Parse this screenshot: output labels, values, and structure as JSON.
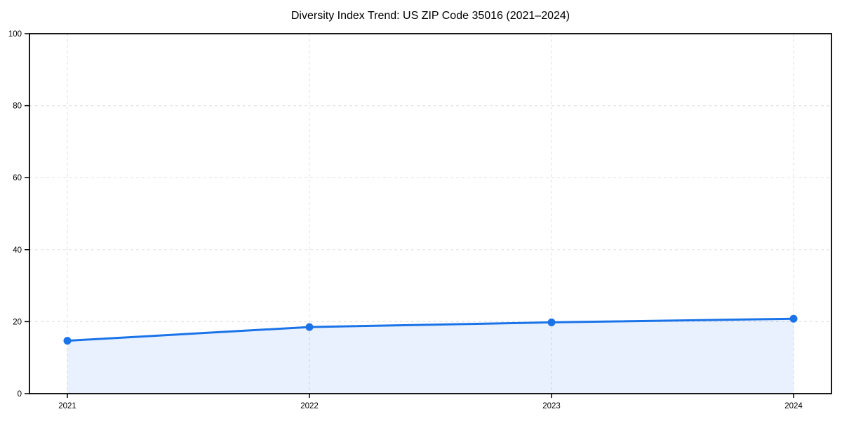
{
  "figure": {
    "title": "Diversity Index Trend: US ZIP Code 35016 (2021–2024)"
  },
  "chart_data": {
    "type": "area",
    "categories": [
      "2021",
      "2022",
      "2023",
      "2024"
    ],
    "values": [
      14.7,
      18.5,
      19.8,
      20.8
    ],
    "series_name": "Diversity Index",
    "title": "Diversity Index Trend: US ZIP Code 35016 (2021–2024)",
    "xlabel": "",
    "ylabel": "",
    "ylim": [
      0,
      100
    ],
    "yticks": [
      0,
      20,
      40,
      60,
      80,
      100
    ],
    "grid": {
      "style": "dashed",
      "horizontal": true,
      "vertical": true
    },
    "legend": "none",
    "markers": "circle",
    "colors": {
      "line": "#1a73e8",
      "marker": "#1a73e8",
      "fill": "rgba(26, 115, 232, 0.10)",
      "grid": "#e4e4e4",
      "axis": "#000000",
      "background": "#ffffff"
    }
  }
}
